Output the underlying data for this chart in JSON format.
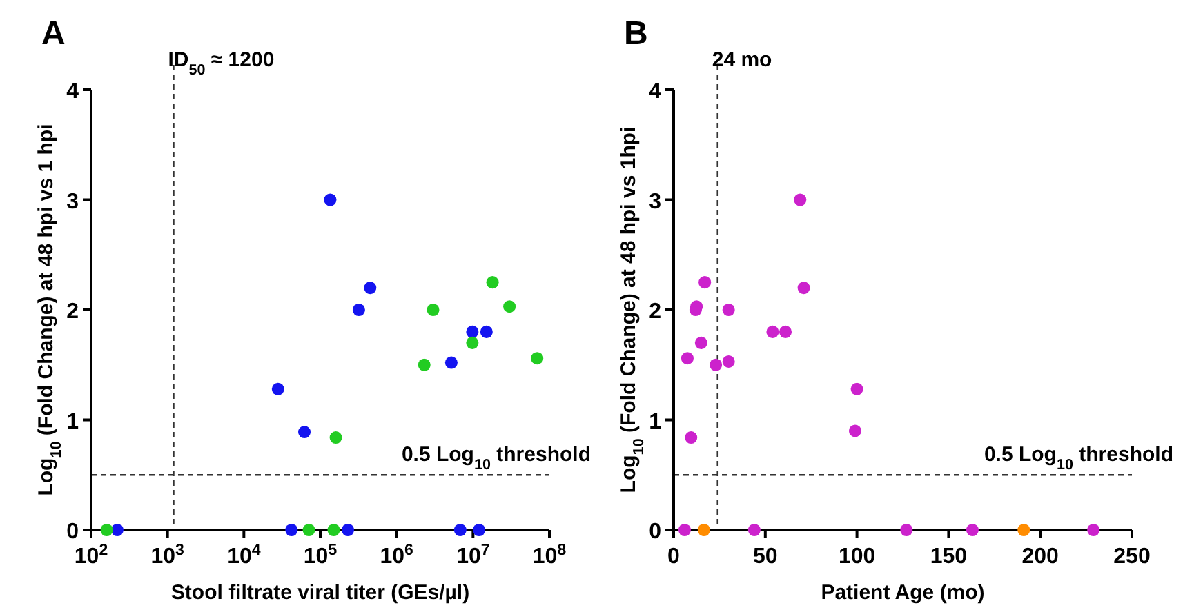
{
  "chart_data": [
    {
      "type": "scatter",
      "title": "A",
      "xlabel": "Stool filtrate viral titer (GEs/µl)",
      "ylabel": "Log$_{10}$ (Fold Change) at 48 hpi vs 1 hpi",
      "log": "x",
      "marker": "circle",
      "xlim": [
        100,
        100000000
      ],
      "xticks": [
        {
          "value": 100,
          "label": "10$^{2}$"
        },
        {
          "value": 1000,
          "label": "10$^{3}$"
        },
        {
          "value": 10000,
          "label": "10$^{4}$"
        },
        {
          "value": 100000,
          "label": "10$^{5}$"
        },
        {
          "value": 1000000,
          "label": "10$^{6}$"
        },
        {
          "value": 10000000,
          "label": "10$^{7}$"
        },
        {
          "value": 100000000,
          "label": "10$^{8}$"
        }
      ],
      "ylim": [
        0,
        4
      ],
      "yticks": [
        0,
        1,
        2,
        3,
        4
      ],
      "ref_lines": [
        {
          "axis": "x",
          "value": 1200,
          "label": "ID$_{50}$ ≈ 1200",
          "line_style": "dashed",
          "color": "#333333"
        },
        {
          "axis": "y",
          "value": 0.5,
          "label": "0.5 Log$_{10}$ threshold",
          "line_style": "dashed",
          "color": "#333333"
        }
      ],
      "series": [
        {
          "color": "#1414f0",
          "x": [
            135000,
            450000,
            320000,
            28000,
            62000,
            5200000,
            9800000,
            15000000,
            220,
            42000,
            230000,
            6800000,
            12000000
          ],
          "values": [
            3.0,
            2.2,
            2.0,
            1.28,
            0.89,
            1.52,
            1.8,
            1.8,
            0,
            0,
            0,
            0,
            0
          ]
        },
        {
          "color": "#22cc22",
          "x": [
            18000000,
            3000000,
            30000000,
            9800000,
            2300000,
            69000000,
            160000,
            160,
            71000,
            150000
          ],
          "values": [
            2.25,
            2.0,
            2.03,
            1.7,
            1.5,
            1.56,
            0.84,
            0,
            0,
            0
          ]
        }
      ]
    },
    {
      "type": "scatter",
      "title": "B",
      "xlabel": "Patient Age (mo)",
      "ylabel": "Log$_{10}$ (Fold Change) at 48 hpi vs 1hpi",
      "marker": "circle",
      "xlim": [
        0,
        250
      ],
      "xticks": [
        0,
        50,
        100,
        150,
        200,
        250
      ],
      "ylim": [
        0,
        4
      ],
      "yticks": [
        0,
        1,
        2,
        3,
        4
      ],
      "ref_lines": [
        {
          "axis": "x",
          "value": 24,
          "label": "24 mo",
          "line_style": "dashed",
          "color": "#333333"
        },
        {
          "axis": "y",
          "value": 0.5,
          "label": "0.5 Log$_{10}$ threshold",
          "line_style": "dashed",
          "color": "#333333"
        }
      ],
      "series": [
        {
          "color": "#cc22cc",
          "x": [
            69,
            71,
            17,
            12,
            12.5,
            30,
            54,
            61,
            15,
            7.5,
            23,
            30,
            100,
            99,
            9.5,
            6,
            44,
            127,
            163,
            229
          ],
          "values": [
            3.0,
            2.2,
            2.25,
            2.0,
            2.03,
            2.0,
            1.8,
            1.8,
            1.7,
            1.56,
            1.5,
            1.53,
            1.28,
            0.9,
            0.84,
            0,
            0,
            0,
            0,
            0
          ]
        },
        {
          "color": "#ff8c00",
          "x": [
            16.5,
            191
          ],
          "values": [
            0,
            0
          ]
        }
      ]
    }
  ]
}
